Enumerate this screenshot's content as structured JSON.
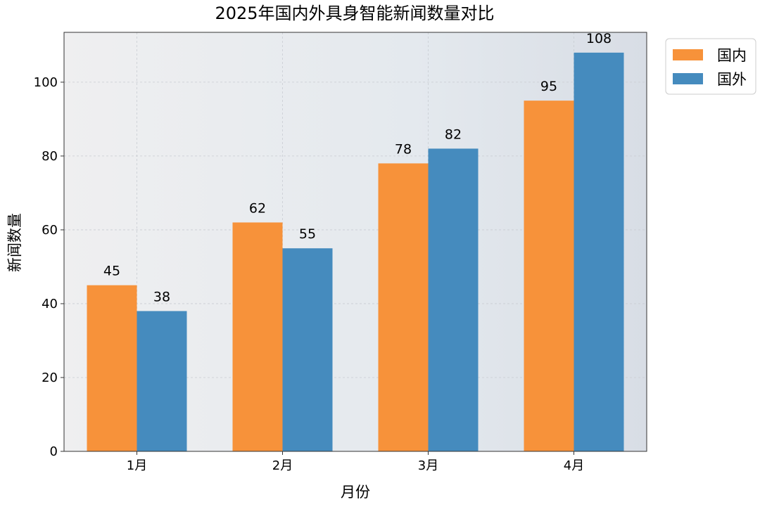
{
  "chart_data": {
    "type": "bar",
    "title": "2025年国内外具身智能新闻数量对比",
    "xlabel": "月份",
    "ylabel": "新闻数量",
    "categories": [
      "1月",
      "2月",
      "3月",
      "4月"
    ],
    "series": [
      {
        "name": "国内",
        "values": [
          45,
          62,
          78,
          95
        ],
        "color": "#f7923a"
      },
      {
        "name": "国外",
        "values": [
          38,
          55,
          82,
          108
        ],
        "color": "#458bbe"
      }
    ],
    "ylim": [
      0,
      113.5
    ],
    "yticks": [
      0,
      20,
      40,
      60,
      80,
      100
    ],
    "grid": true,
    "legend_position": "upper right, outside plot",
    "background": "light gray-blue gradient"
  }
}
